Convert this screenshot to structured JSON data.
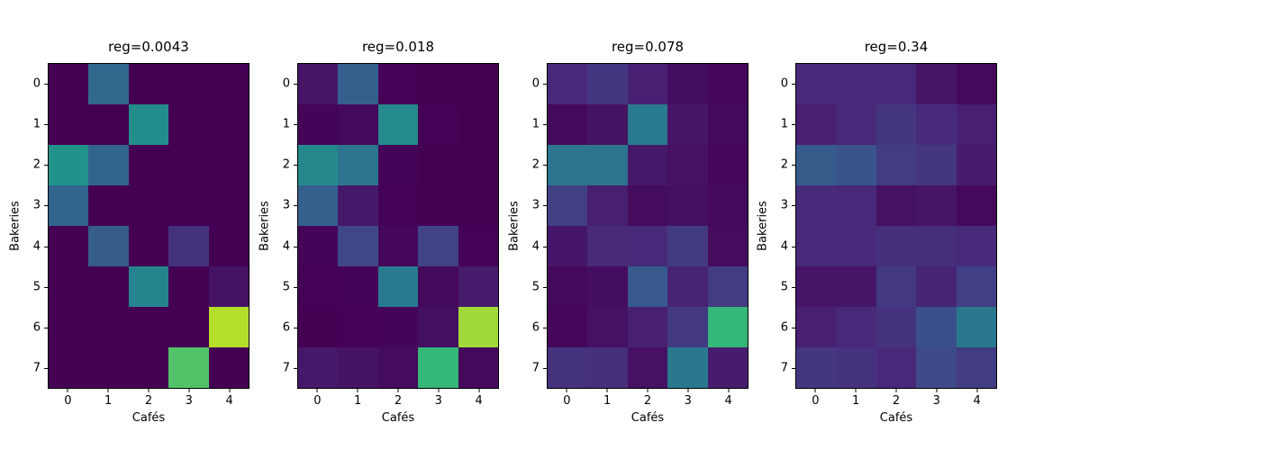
{
  "figure": {
    "background": "#ffffff",
    "text_color": "#000000"
  },
  "colormap": {
    "name": "viridis",
    "anchors": [
      [
        0.0,
        "#440154"
      ],
      [
        0.1,
        "#482878"
      ],
      [
        0.2,
        "#3e4a89"
      ],
      [
        0.3,
        "#31688e"
      ],
      [
        0.4,
        "#26828e"
      ],
      [
        0.5,
        "#1f9e89"
      ],
      [
        0.6,
        "#35b779"
      ],
      [
        0.7,
        "#6ece58"
      ],
      [
        0.8,
        "#b5de2b"
      ],
      [
        0.9,
        "#dfe318"
      ],
      [
        1.0,
        "#fde725"
      ]
    ]
  },
  "chart_data": [
    {
      "type": "heatmap",
      "title": "reg=0.0043",
      "xlabel": "Cafés",
      "ylabel": "Bakeries",
      "x_ticks": [
        "0",
        "1",
        "2",
        "3",
        "4"
      ],
      "y_ticks": [
        "0",
        "1",
        "2",
        "3",
        "4",
        "5",
        "6",
        "7"
      ],
      "legend": "none",
      "grid": false,
      "values": [
        [
          0,
          0.3,
          0,
          0,
          0
        ],
        [
          0,
          0,
          0.44,
          0,
          0
        ],
        [
          0.46,
          0.29,
          0,
          0,
          0
        ],
        [
          0.29,
          0,
          0,
          0,
          0
        ],
        [
          0,
          0.26,
          0,
          0.13,
          0
        ],
        [
          0,
          0,
          0.41,
          0,
          0.045
        ],
        [
          0,
          0,
          0,
          0,
          0.8
        ],
        [
          0,
          0,
          0,
          0.65,
          0
        ]
      ]
    },
    {
      "type": "heatmap",
      "title": "reg=0.018",
      "xlabel": "Cafés",
      "ylabel": "Bakeries",
      "x_ticks": [
        "0",
        "1",
        "2",
        "3",
        "4"
      ],
      "y_ticks": [
        "0",
        "1",
        "2",
        "3",
        "4",
        "5",
        "6",
        "7"
      ],
      "legend": "none",
      "grid": false,
      "values": [
        [
          0.05,
          0.27,
          0.005,
          0,
          0
        ],
        [
          0.01,
          0.02,
          0.43,
          0.005,
          0
        ],
        [
          0.42,
          0.35,
          0.01,
          0,
          0
        ],
        [
          0.27,
          0.06,
          0.005,
          0,
          0
        ],
        [
          0.01,
          0.19,
          0.015,
          0.18,
          0.005
        ],
        [
          0.005,
          0.01,
          0.37,
          0.02,
          0.07
        ],
        [
          0,
          0.005,
          0.01,
          0.035,
          0.77
        ],
        [
          0.06,
          0.045,
          0.025,
          0.6,
          0.02
        ]
      ]
    },
    {
      "type": "heatmap",
      "title": "reg=0.078",
      "xlabel": "Cafés",
      "ylabel": "Bakeries",
      "x_ticks": [
        "0",
        "1",
        "2",
        "3",
        "4"
      ],
      "y_ticks": [
        "0",
        "1",
        "2",
        "3",
        "4",
        "5",
        "6",
        "7"
      ],
      "legend": "none",
      "grid": false,
      "values": [
        [
          0.1,
          0.14,
          0.08,
          0.03,
          0.015
        ],
        [
          0.02,
          0.045,
          0.37,
          0.05,
          0.02
        ],
        [
          0.35,
          0.35,
          0.06,
          0.04,
          0.015
        ],
        [
          0.17,
          0.08,
          0.025,
          0.035,
          0.02
        ],
        [
          0.055,
          0.105,
          0.11,
          0.155,
          0.025
        ],
        [
          0.02,
          0.03,
          0.25,
          0.09,
          0.16
        ],
        [
          0.015,
          0.04,
          0.08,
          0.15,
          0.6
        ],
        [
          0.13,
          0.12,
          0.04,
          0.36,
          0.07
        ]
      ]
    },
    {
      "type": "heatmap",
      "title": "reg=0.34",
      "xlabel": "Cafés",
      "ylabel": "Bakeries",
      "x_ticks": [
        "0",
        "1",
        "2",
        "3",
        "4"
      ],
      "y_ticks": [
        "0",
        "1",
        "2",
        "3",
        "4",
        "5",
        "6",
        "7"
      ],
      "legend": "none",
      "grid": false,
      "values": [
        [
          0.1,
          0.1,
          0.1,
          0.05,
          0.02
        ],
        [
          0.08,
          0.1,
          0.14,
          0.11,
          0.08
        ],
        [
          0.26,
          0.23,
          0.16,
          0.14,
          0.07
        ],
        [
          0.11,
          0.1,
          0.04,
          0.05,
          0.02
        ],
        [
          0.1,
          0.11,
          0.12,
          0.12,
          0.11
        ],
        [
          0.05,
          0.05,
          0.15,
          0.09,
          0.17
        ],
        [
          0.08,
          0.1,
          0.13,
          0.22,
          0.36
        ],
        [
          0.14,
          0.13,
          0.1,
          0.2,
          0.16
        ]
      ]
    }
  ]
}
